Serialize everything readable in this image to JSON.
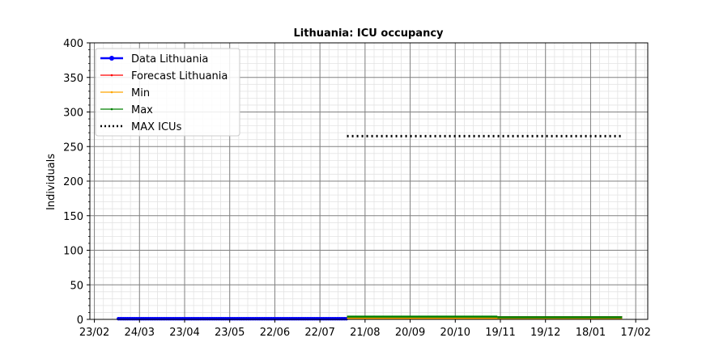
{
  "chart_data": {
    "type": "line",
    "title": "Lithuania: ICU occupancy",
    "xlabel": "",
    "ylabel": "Individuals",
    "ylim": [
      0,
      400
    ],
    "yticks": [
      0,
      50,
      100,
      150,
      200,
      250,
      300,
      350,
      400
    ],
    "xticks": [
      {
        "date": "2020-02-23",
        "label": "23/02"
      },
      {
        "date": "2020-03-24",
        "label": "24/03"
      },
      {
        "date": "2020-04-23",
        "label": "23/04"
      },
      {
        "date": "2020-05-23",
        "label": "23/05"
      },
      {
        "date": "2020-06-22",
        "label": "22/06"
      },
      {
        "date": "2020-07-22",
        "label": "22/07"
      },
      {
        "date": "2020-08-21",
        "label": "21/08"
      },
      {
        "date": "2020-09-20",
        "label": "20/09"
      },
      {
        "date": "2020-10-20",
        "label": "20/10"
      },
      {
        "date": "2020-11-19",
        "label": "19/11"
      },
      {
        "date": "2020-12-19",
        "label": "19/12"
      },
      {
        "date": "2021-01-18",
        "label": "18/01"
      },
      {
        "date": "2021-02-17",
        "label": "17/02"
      }
    ],
    "xlim": [
      "2020-02-20",
      "2021-02-25"
    ],
    "grid": true,
    "legend_position": "top-left",
    "series": [
      {
        "name": "Data Lithuania",
        "color": "#0000ff",
        "style": "solid-markers",
        "x_start": "2020-03-10",
        "x_end": "2020-08-09",
        "value": 1
      },
      {
        "name": "Forecast Lithuania",
        "color": "#ff0000",
        "style": "solid",
        "x_start": "2020-08-09",
        "x_end": "2021-02-08",
        "value": 3
      },
      {
        "name": "Min",
        "color": "#ffa500",
        "style": "solid",
        "x_start": "2020-08-09",
        "x_end": "2021-02-08",
        "value": 2
      },
      {
        "name": "Max",
        "color": "#008000",
        "style": "solid",
        "x_start": "2020-08-09",
        "x_end": "2020-11-17",
        "value": 4,
        "x_start2": "2020-11-17",
        "x_end2": "2021-02-08",
        "value2": 3
      },
      {
        "name": "MAX ICUs",
        "color": "#000000",
        "style": "dotted",
        "x_start": "2020-08-09",
        "x_end": "2021-02-08",
        "value": 265
      }
    ]
  }
}
